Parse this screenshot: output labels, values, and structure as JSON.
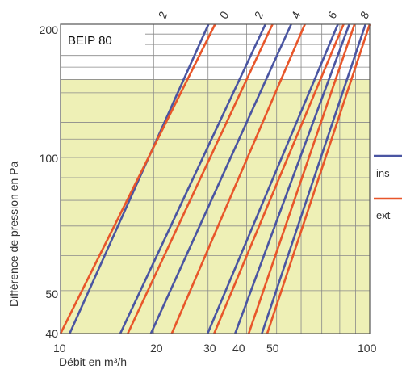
{
  "chart_data": {
    "type": "line",
    "title": "BEIP 80",
    "xlabel": "Débit en m³/h",
    "ylabel": "Différence de pression en Pa",
    "xscale": "log",
    "yscale": "log",
    "xlim": [
      10,
      100
    ],
    "ylim": [
      40,
      200
    ],
    "x_ticks": [
      "10",
      "20",
      "30",
      "40",
      "50",
      "100"
    ],
    "y_ticks": [
      "40",
      "50",
      "100",
      "200"
    ],
    "top_labels": [
      "2",
      "0",
      "2",
      "4",
      "6",
      "8"
    ],
    "highlight_band": {
      "y_from": 40,
      "y_to": 150,
      "color": "#eef0b6"
    },
    "legend": {
      "labels": [
        "ins",
        "ext"
      ],
      "placement": "right"
    },
    "colors": {
      "blue": "#4a55a2",
      "orange": "#e8562a",
      "grid": "#8a8a8a"
    },
    "series": [
      {
        "group": "2",
        "color": "blue",
        "x": [
          10.7,
          30.1
        ],
        "y": [
          40,
          200
        ]
      },
      {
        "group": "2",
        "color": "orange",
        "x": [
          10.0,
          31.6
        ],
        "y": [
          40,
          200
        ]
      },
      {
        "group": "0",
        "color": "blue",
        "x": [
          15.6,
          46.0
        ],
        "y": [
          40,
          200
        ]
      },
      {
        "group": "0",
        "color": "orange",
        "x": [
          16.5,
          48.5
        ],
        "y": [
          40,
          200
        ]
      },
      {
        "group": "2",
        "color": "blue",
        "x": [
          19.6,
          55.7
        ],
        "y": [
          40,
          200
        ]
      },
      {
        "group": "2",
        "color": "orange",
        "x": [
          22.9,
          61.7
        ],
        "y": [
          40,
          200
        ]
      },
      {
        "group": "4",
        "color": "blue",
        "x": [
          29.9,
          78.9
        ],
        "y": [
          40,
          200
        ]
      },
      {
        "group": "4",
        "color": "orange",
        "x": [
          31.4,
          82.3
        ],
        "y": [
          40,
          200
        ]
      },
      {
        "group": "6",
        "color": "blue",
        "x": [
          36.7,
          85.9
        ],
        "y": [
          40,
          200
        ]
      },
      {
        "group": "6",
        "color": "orange",
        "x": [
          40.6,
          89.3
        ],
        "y": [
          40,
          200
        ]
      },
      {
        "group": "8",
        "color": "blue",
        "x": [
          44.8,
          96.9
        ],
        "y": [
          40,
          200
        ]
      },
      {
        "group": "8",
        "color": "orange",
        "x": [
          46.6,
          100.0
        ],
        "y": [
          40,
          200
        ]
      }
    ]
  }
}
